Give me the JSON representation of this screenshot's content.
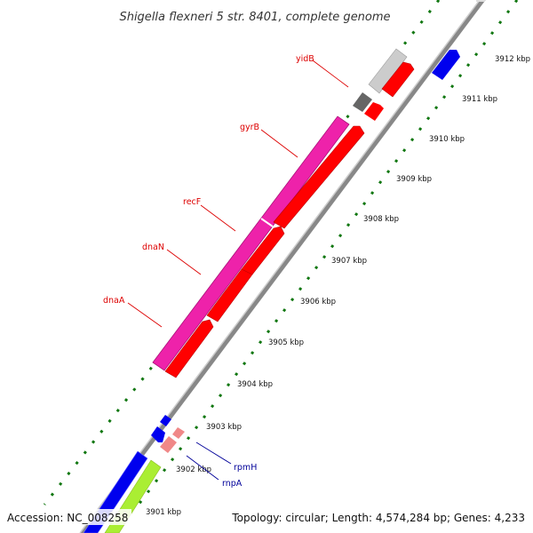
{
  "title": "Shigella flexneri 5 str. 8401, complete genome",
  "footer": {
    "accession": "Accession: NC_008258",
    "stats": "Topology: circular; Length: 4,574,284 bp; Genes: 4,233"
  },
  "ticks": [
    "3912 kbp",
    "3911 kbp",
    "3910 kbp",
    "3909 kbp",
    "3908 kbp",
    "3907 kbp",
    "3906 kbp",
    "3905 kbp",
    "3904 kbp",
    "3903 kbp",
    "3902 kbp",
    "3901 kbp"
  ],
  "gene_labels": [
    "yidB",
    "gyrB",
    "recF",
    "dnaN",
    "dnaA",
    "rpmH",
    "rnpA"
  ],
  "colors": {
    "backbone": "#888888",
    "pink": "#ee22aa",
    "red": "#ff0000",
    "blue": "#0000ee",
    "green": "#aaee33",
    "light_pink": "#f08888",
    "gray": "#666666",
    "light_gray": "#cccccc",
    "tick": "#117711",
    "label_red": "#dd0000",
    "label_blue": "#000099"
  }
}
